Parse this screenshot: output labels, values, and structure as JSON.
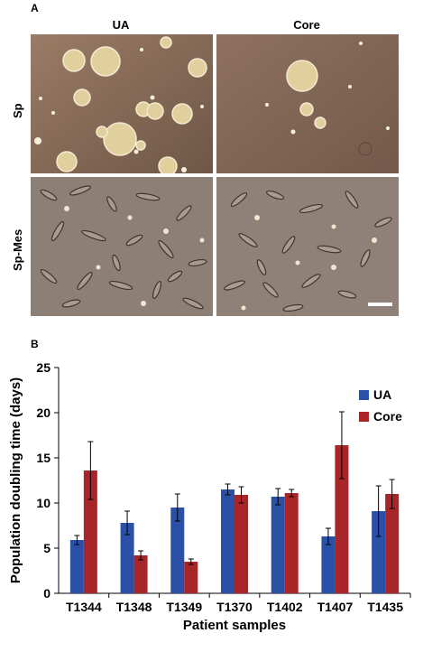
{
  "panel_a": {
    "letter": "A",
    "columns": [
      "UA",
      "Core"
    ],
    "rows": [
      "Sp",
      "Sp-Mes"
    ]
  },
  "panel_b": {
    "letter": "B"
  },
  "colors": {
    "ua": "#2b50a8",
    "core": "#a82528",
    "sp_bg": "#8a6d58",
    "mes_bg": "#8d7f74"
  },
  "chart_data": {
    "type": "bar",
    "categories": [
      "T1344",
      "T1348",
      "T1349",
      "T1370",
      "T1402",
      "T1407",
      "T1435"
    ],
    "series": [
      {
        "name": "UA",
        "values": [
          5.9,
          7.8,
          9.5,
          11.5,
          10.7,
          6.3,
          9.1
        ],
        "errors": [
          0.5,
          1.3,
          1.5,
          0.6,
          0.9,
          0.9,
          2.8
        ]
      },
      {
        "name": "Core",
        "values": [
          13.6,
          4.2,
          3.5,
          10.9,
          11.1,
          16.4,
          11.0
        ],
        "errors": [
          3.2,
          0.5,
          0.3,
          0.9,
          0.4,
          3.7,
          1.6
        ]
      }
    ],
    "xlabel": "Patient samples",
    "ylabel": "Population doubling time (days)",
    "ylim": [
      0,
      25
    ],
    "yticks": [
      0,
      5,
      10,
      15,
      20,
      25
    ],
    "legend_position": "right"
  }
}
